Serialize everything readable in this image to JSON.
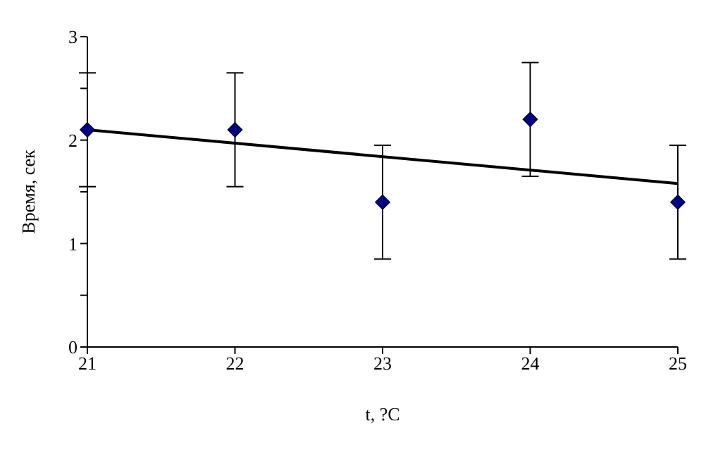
{
  "chart_data": {
    "type": "scatter",
    "xlabel": "t, ?C",
    "ylabel": "Время, сек",
    "x": [
      21,
      22,
      23,
      24,
      25
    ],
    "series": [
      {
        "color": "#000080",
        "values": [
          2.1,
          2.1,
          1.4,
          2.2,
          1.4
        ],
        "errors": [
          0.55,
          0.55,
          0.55,
          0.55,
          0.55
        ],
        "marker": "diamond"
      },
      {
        "type": "line",
        "color": "#000000",
        "x": [
          21,
          25
        ],
        "values": [
          2.1,
          1.58
        ],
        "marker": "none"
      }
    ],
    "xlim": [
      21,
      25
    ],
    "xticks": [
      21,
      22,
      23,
      24,
      25
    ],
    "ylim": [
      0,
      3
    ],
    "yticks": [
      0,
      {
        "value": 0.5,
        "label": null
      },
      1,
      {
        "value": 1.5,
        "label": null
      },
      2,
      {
        "value": 2.5,
        "label": null
      },
      3
    ],
    "grid": false
  }
}
